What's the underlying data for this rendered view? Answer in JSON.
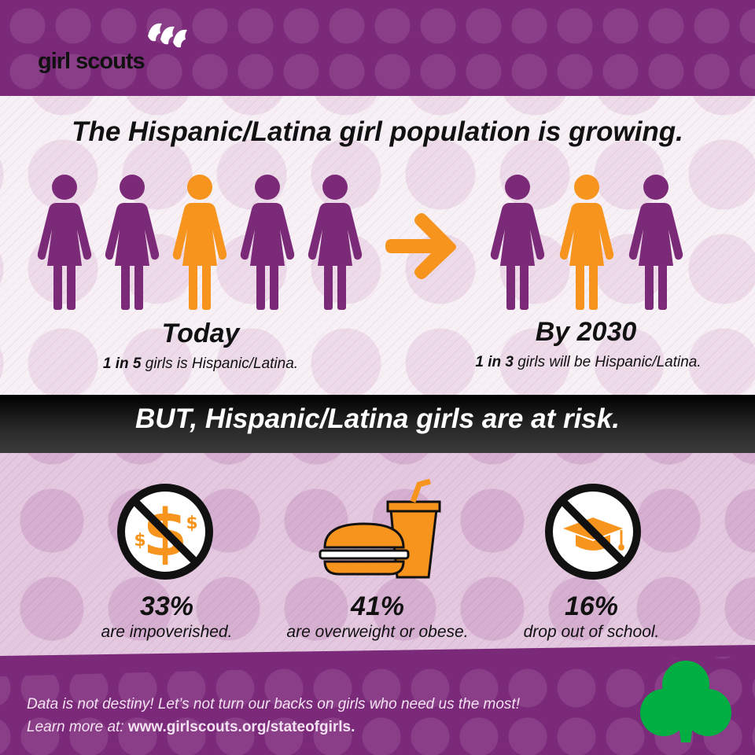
{
  "brand": {
    "logo_text": "girl scouts"
  },
  "headline": "The Hispanic/Latina girl population is growing.",
  "today": {
    "label": "Today",
    "stat_bold": "1 in 5",
    "stat_rest": " girls is Hispanic/Latina.",
    "figures": [
      "purple",
      "purple",
      "orange",
      "purple",
      "purple"
    ]
  },
  "future": {
    "label": "By 2030",
    "stat_bold": "1 in 3",
    "stat_rest": " girls will be Hispanic/Latina.",
    "figures": [
      "purple",
      "orange",
      "purple"
    ]
  },
  "risk_headline": "BUT, Hispanic/Latina girls are at risk.",
  "stats": [
    {
      "value": "33%",
      "description": "are impoverished.",
      "icon": "no-money-icon"
    },
    {
      "value": "41%",
      "description": "are overweight or obese.",
      "icon": "fast-food-icon"
    },
    {
      "value": "16%",
      "description": "drop out of school.",
      "icon": "no-graduation-icon"
    }
  ],
  "footer": {
    "line1": "Data is not destiny! Let’s not turn our backs on girls who need us the most!",
    "line2_prefix": "Learn more at: ",
    "line2_url": "www.girlscouts.org/stateofgirls."
  },
  "colors": {
    "purple": "#7b2a78",
    "orange": "#f7941d",
    "green": "#00ae42"
  }
}
